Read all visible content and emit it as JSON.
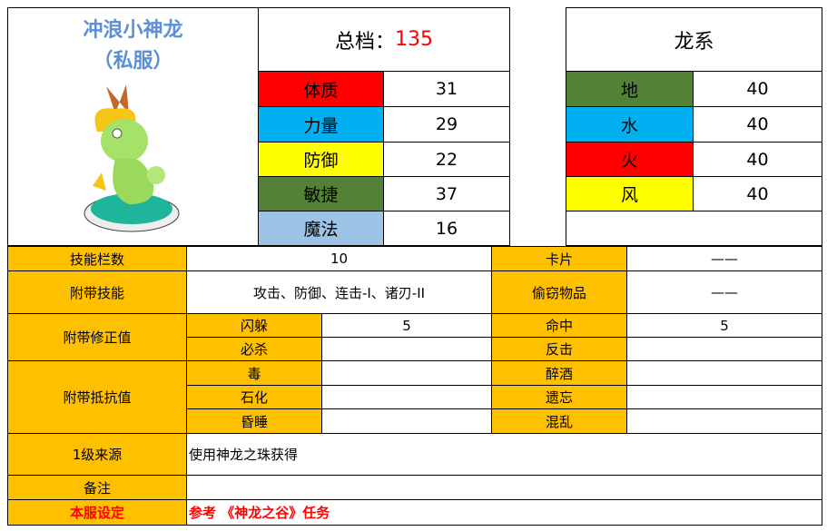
{
  "pet": {
    "name": "冲浪小神龙",
    "subtitle": "（私服）",
    "image": "surfing-little-dragon-image"
  },
  "total": {
    "label": "总档：",
    "value": "135"
  },
  "stats": [
    {
      "label": "体质",
      "value": "31",
      "color": "#ff0000"
    },
    {
      "label": "力量",
      "value": "29",
      "color": "#00b0f0"
    },
    {
      "label": "防御",
      "value": "22",
      "color": "#ffff00"
    },
    {
      "label": "敏捷",
      "value": "37",
      "color": "#538135"
    },
    {
      "label": "魔法",
      "value": "16",
      "color": "#9dc3e6"
    }
  ],
  "element": {
    "title": "龙系",
    "items": [
      {
        "label": "地",
        "value": "40",
        "color": "#538135"
      },
      {
        "label": "水",
        "value": "40",
        "color": "#00b0f0"
      },
      {
        "label": "火",
        "value": "40",
        "color": "#ff0000"
      },
      {
        "label": "风",
        "value": "40",
        "color": "#ffff00"
      }
    ]
  },
  "table": {
    "skill_slots": {
      "label": "技能栏数",
      "value": "10"
    },
    "card": {
      "label": "卡片",
      "value": "——"
    },
    "skills": {
      "label": "附带技能",
      "value": "攻击、防御、连击-I、诸刃-II"
    },
    "steal": {
      "label": "偷窃物品",
      "value": "——"
    },
    "modifiers": {
      "label": "附带修正值",
      "items": [
        {
          "label": "闪躲",
          "value": "5"
        },
        {
          "label": "命中",
          "value": "5"
        },
        {
          "label": "必杀",
          "value": ""
        },
        {
          "label": "反击",
          "value": ""
        }
      ]
    },
    "resist": {
      "label": "附带抵抗值",
      "items": [
        {
          "label": "毒",
          "value": ""
        },
        {
          "label": "醉酒",
          "value": ""
        },
        {
          "label": "石化",
          "value": ""
        },
        {
          "label": "遗忘",
          "value": ""
        },
        {
          "label": "昏睡",
          "value": ""
        },
        {
          "label": "混乱",
          "value": ""
        }
      ]
    },
    "source": {
      "label": "1级来源",
      "value": "使用神龙之珠获得"
    },
    "note": {
      "label": "备注",
      "value": ""
    },
    "server": {
      "label": "本服设定",
      "value": "参考 《神龙之谷》任务"
    },
    "accent": "#ffc000"
  }
}
